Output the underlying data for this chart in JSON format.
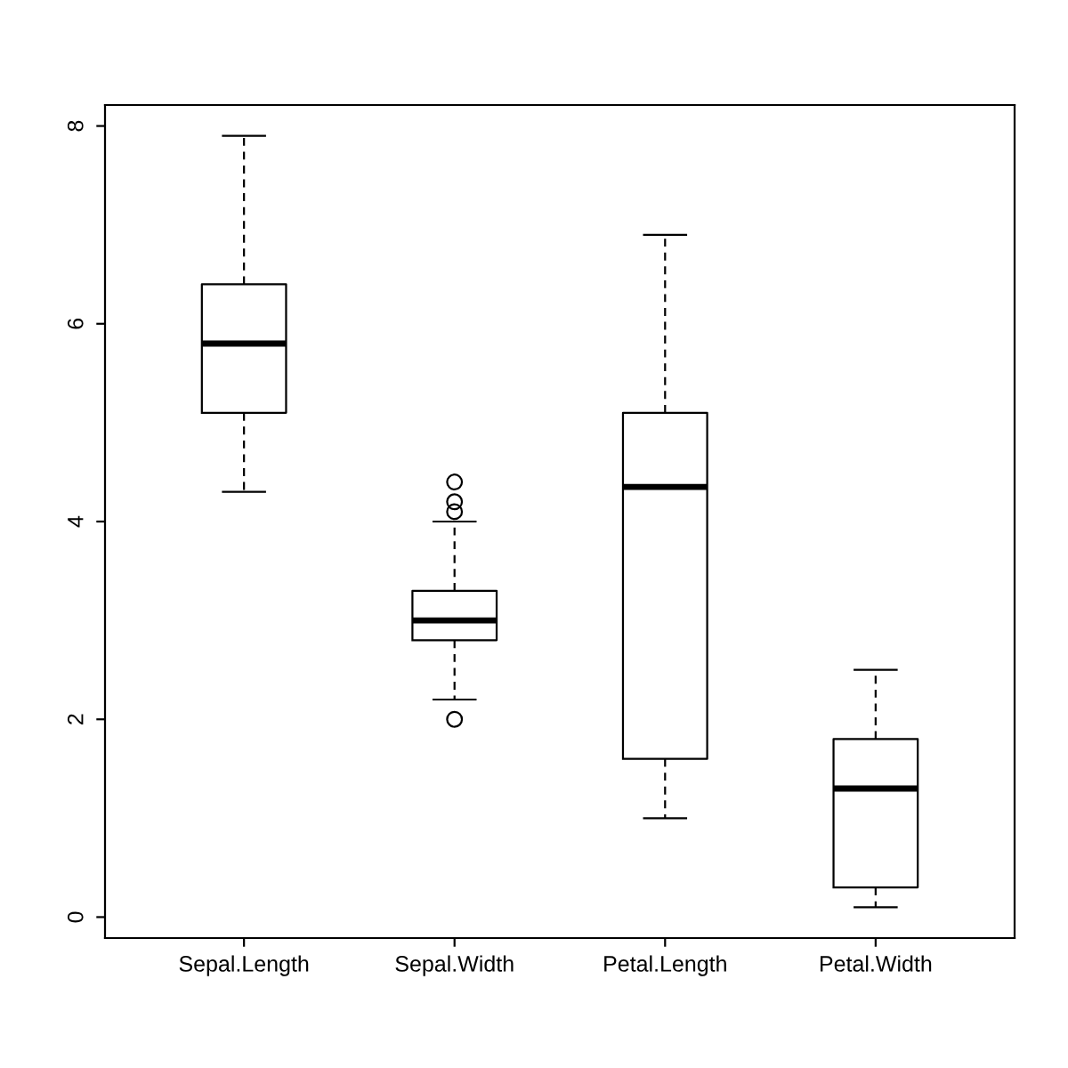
{
  "chart_data": {
    "type": "box",
    "categories": [
      "Sepal.Length",
      "Sepal.Width",
      "Petal.Length",
      "Petal.Width"
    ],
    "boxes": [
      {
        "low": 4.3,
        "q1": 5.1,
        "median": 5.8,
        "q3": 6.4,
        "high": 7.9
      },
      {
        "low": 2.2,
        "q1": 2.8,
        "median": 3.0,
        "q3": 3.3,
        "high": 4.0,
        "outliers": [
          4.4,
          4.1,
          4.2,
          2.0
        ]
      },
      {
        "low": 1.0,
        "q1": 1.6,
        "median": 4.35,
        "q3": 5.1,
        "high": 6.9
      },
      {
        "low": 0.1,
        "q1": 0.3,
        "median": 1.3,
        "q3": 1.8,
        "high": 2.5
      }
    ],
    "ylim": [
      -0.212,
      8.212
    ],
    "yticks": [
      0,
      2,
      4,
      6,
      8
    ],
    "grid": false,
    "legend": false
  }
}
